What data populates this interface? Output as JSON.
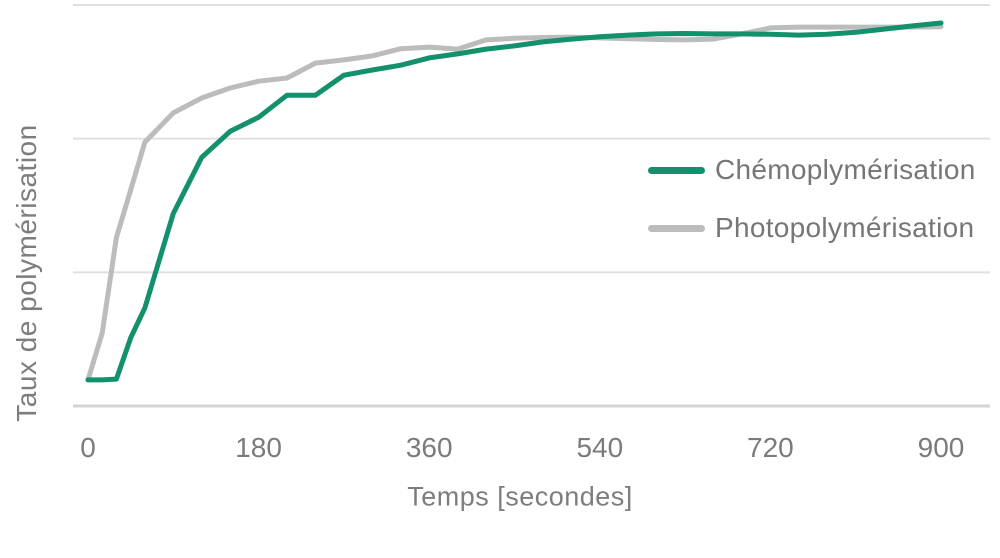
{
  "chart_data": {
    "type": "line",
    "title": "",
    "xlabel": "Temps [secondes]",
    "ylabel": "Taux de polymérisation",
    "xlim": [
      0,
      900
    ],
    "ylim": [
      0,
      1
    ],
    "grid": "horizontal",
    "y_gridlines": [
      0,
      0.3333,
      0.6667,
      1
    ],
    "x_ticks": [
      "0",
      "180",
      "360",
      "540",
      "720",
      "900"
    ],
    "x_tick_values": [
      0,
      180,
      360,
      540,
      720,
      900
    ],
    "legend_position": "right",
    "x": [
      0,
      15,
      30,
      45,
      60,
      90,
      120,
      150,
      180,
      210,
      240,
      270,
      300,
      330,
      360,
      390,
      420,
      450,
      480,
      510,
      540,
      570,
      600,
      630,
      660,
      690,
      720,
      750,
      780,
      810,
      840,
      870,
      900
    ],
    "series": [
      {
        "name": "Chémoplymérisation",
        "color": "#12916c",
        "values": [
          0.065,
          0.065,
          0.067,
          0.17,
          0.245,
          0.48,
          0.62,
          0.685,
          0.72,
          0.775,
          0.775,
          0.825,
          0.838,
          0.85,
          0.868,
          0.878,
          0.89,
          0.898,
          0.908,
          0.915,
          0.921,
          0.925,
          0.928,
          0.929,
          0.928,
          0.928,
          0.927,
          0.925,
          0.927,
          0.932,
          0.94,
          0.948,
          0.955
        ]
      },
      {
        "name": "Photopolymérisation",
        "color": "#bcbcbc",
        "values": [
          0.065,
          0.182,
          0.42,
          0.539,
          0.658,
          0.731,
          0.768,
          0.793,
          0.81,
          0.818,
          0.855,
          0.863,
          0.873,
          0.891,
          0.895,
          0.89,
          0.913,
          0.917,
          0.919,
          0.92,
          0.918,
          0.916,
          0.914,
          0.913,
          0.915,
          0.928,
          0.943,
          0.945,
          0.945,
          0.945,
          0.945,
          0.945,
          0.946
        ]
      }
    ],
    "colors": {
      "gridline": "#e0e0e0",
      "axis_line": "#d4d4d4",
      "tick_text": "#7b7b7b",
      "axis_title_text": "#7d7d7d",
      "legend_text": "#767676"
    }
  }
}
